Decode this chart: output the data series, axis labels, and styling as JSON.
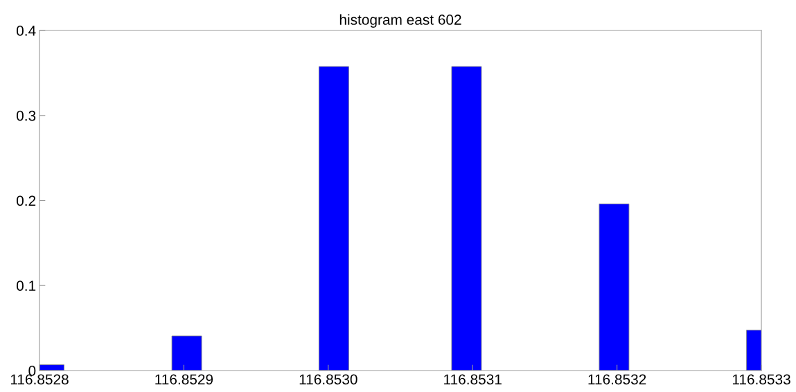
{
  "chart_data": {
    "type": "bar",
    "title": "histogram east 602",
    "x": [
      116.8528067,
      116.852902,
      116.8530039,
      116.8530958,
      116.853198,
      116.8533
    ],
    "values": [
      0.0068,
      0.0407,
      0.3576,
      0.3576,
      0.196,
      0.0475
    ],
    "color": "#0000ff",
    "xlim": [
      116.8528,
      116.8533
    ],
    "xticks": [
      {
        "value": 116.8528,
        "label": "116.8528"
      },
      {
        "value": 116.8529,
        "label": "116.8529"
      },
      {
        "value": 116.853,
        "label": "116.8530"
      },
      {
        "value": 116.8531,
        "label": "116.8531"
      },
      {
        "value": 116.8532,
        "label": "116.8532"
      },
      {
        "value": 116.8533,
        "label": "116.8533"
      }
    ],
    "ylim": [
      0,
      0.4
    ],
    "yticks": [
      0,
      0.1,
      0.2,
      0.3,
      0.4
    ],
    "grid": false,
    "legend": false
  }
}
